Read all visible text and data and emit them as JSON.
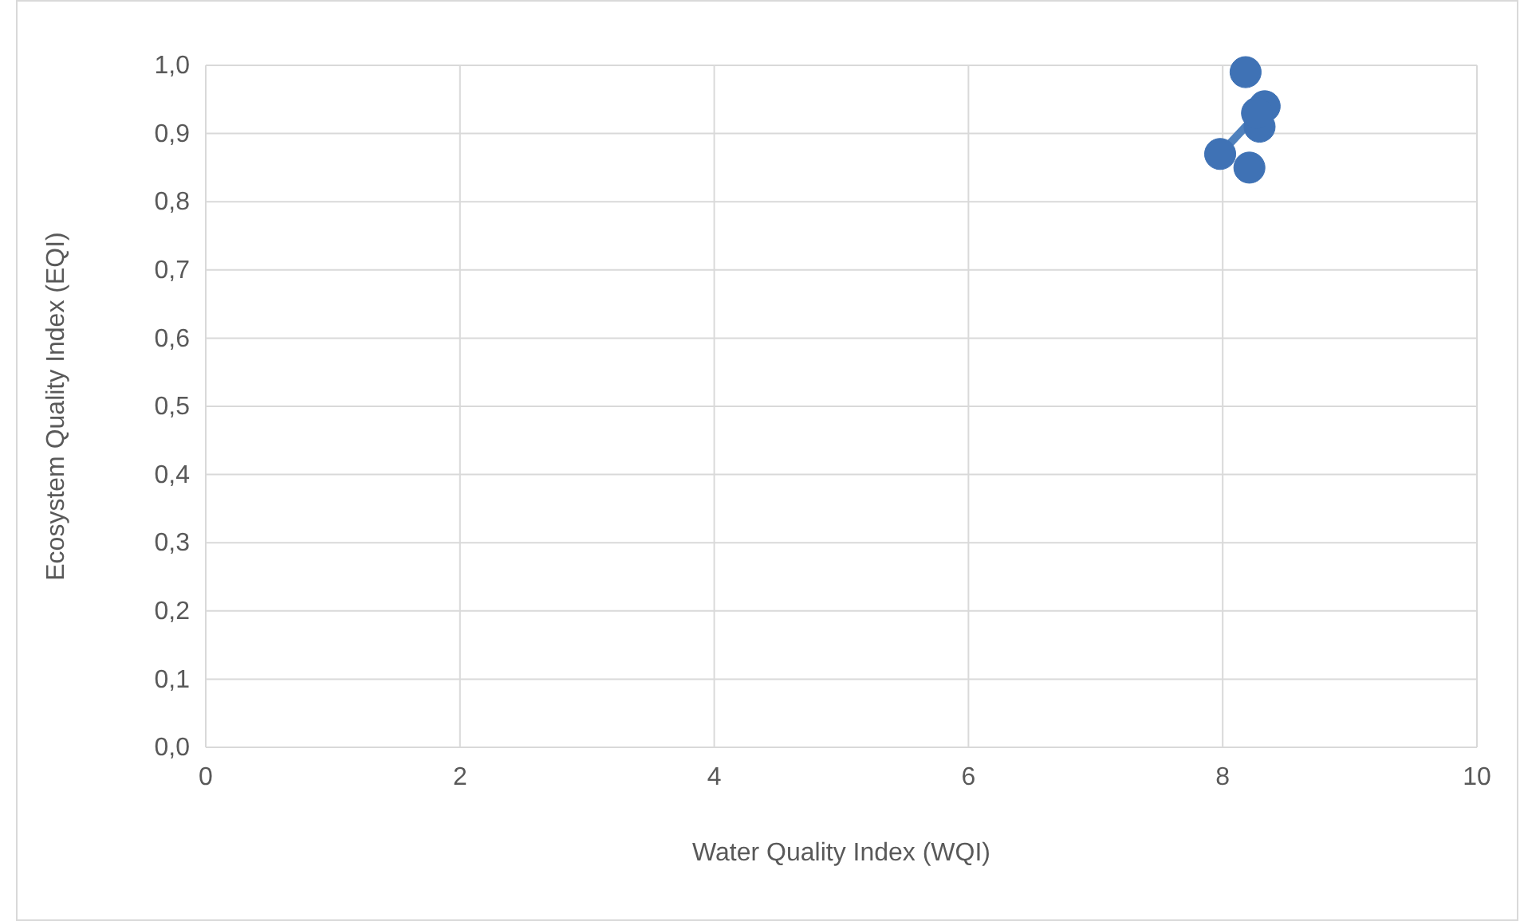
{
  "chart_data": {
    "type": "scatter",
    "xlabel": "Water Quality Index (WQI)",
    "ylabel": "Ecosystem Quality Index (EQI)",
    "xlim": [
      0,
      10
    ],
    "xticks": [
      0,
      2,
      4,
      6,
      8,
      10
    ],
    "ylim": [
      0,
      1
    ],
    "yticks": [
      {
        "value": 0,
        "label": "0,0"
      },
      {
        "value": 0.1,
        "label": "0,1"
      },
      {
        "value": 0.2,
        "label": "0,2"
      },
      {
        "value": 0.3,
        "label": "0,3"
      },
      {
        "value": 0.4,
        "label": "0,4"
      },
      {
        "value": 0.5,
        "label": "0,5"
      },
      {
        "value": 0.6,
        "label": "0,6"
      },
      {
        "value": 0.7,
        "label": "0,7"
      },
      {
        "value": 0.8,
        "label": "0,8"
      },
      {
        "value": 0.9,
        "label": "0,9"
      },
      {
        "value": 1,
        "label": "1,0"
      }
    ],
    "grid": true,
    "marker": "circle",
    "series": [
      {
        "type": "line",
        "color": "#4f81bd",
        "x": [
          7.98,
          8.33
        ],
        "values": [
          0.87,
          0.94
        ],
        "marker": "none"
      },
      {
        "color": "#3f72b5",
        "x": [
          8.18,
          8.33,
          8.29,
          8.27,
          7.98,
          8.21
        ],
        "values": [
          0.99,
          0.94,
          0.91,
          0.93,
          0.87,
          0.85
        ]
      }
    ]
  }
}
